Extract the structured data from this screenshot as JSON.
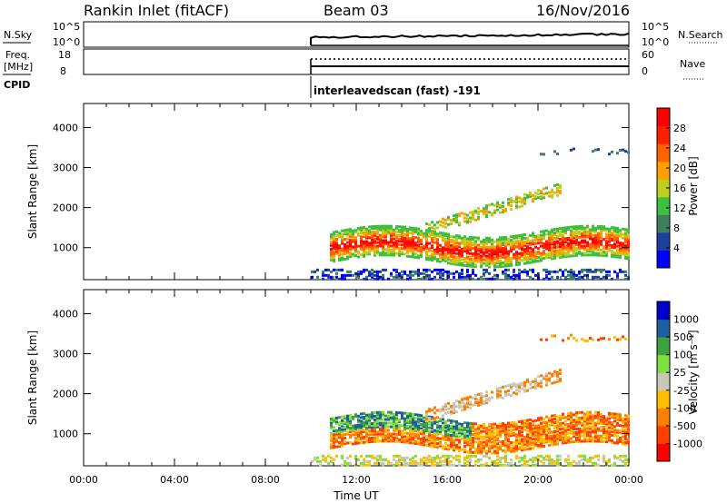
{
  "header": {
    "station": "Rankin Inlet (fitACF)",
    "beam": "Beam 03",
    "date": "16/Nov/2016"
  },
  "panels": {
    "nsky_label": "N.Sky",
    "nsky_ticks": [
      "10^5",
      "10^0"
    ],
    "nsearch_label": "N.Search",
    "nsearch_ticks": [
      "10^5",
      "10^0"
    ],
    "freq_label": "Freq.",
    "freq_unit": "[MHz]",
    "freq_ticks": [
      "18",
      "8"
    ],
    "nave_label": "Nave",
    "nave_ticks": [
      "60",
      "0"
    ],
    "cpid_label": "CPID",
    "cpid_text": "interleavedscan (fast) -191"
  },
  "colors": {
    "power": [
      "#0000ff",
      "#1f3f9f",
      "#3f7f5f",
      "#3fbf3f",
      "#bfcf1f",
      "#ffa000",
      "#ff6000",
      "#ff1f00",
      "#ff0000"
    ],
    "velocity": [
      "#ff0000",
      "#ff4000",
      "#ff7f00",
      "#ffbf00",
      "#c8c8b4",
      "#7fdf3f",
      "#3fa03f",
      "#1f5fa0",
      "#0000c8"
    ]
  },
  "chart_data": [
    {
      "type": "heatmap",
      "panel": "power",
      "ylabel": "Slant Range [km]",
      "xlabel": "",
      "x_ticks": [
        "00:00",
        "04:00",
        "08:00",
        "12:00",
        "16:00",
        "20:00",
        "00:00"
      ],
      "y_ticks": [
        1000,
        2000,
        3000,
        4000
      ],
      "ylim": [
        200,
        4600
      ],
      "xlim_hours": [
        0,
        24
      ],
      "colorbar_label": "Power [dB]",
      "colorbar_ticks": [
        "4",
        "8",
        "12",
        "16",
        "20",
        "24",
        "28"
      ],
      "colorbar_range": [
        0,
        32
      ]
    },
    {
      "type": "heatmap",
      "panel": "velocity",
      "ylabel": "Slant Range [km]",
      "xlabel": "Time UT",
      "x_ticks": [
        "00:00",
        "04:00",
        "08:00",
        "12:00",
        "16:00",
        "20:00",
        "00:00"
      ],
      "y_ticks": [
        1000,
        2000,
        3000,
        4000
      ],
      "ylim": [
        200,
        4600
      ],
      "xlim_hours": [
        0,
        24
      ],
      "colorbar_label": "Velocity [m s⁻¹]",
      "colorbar_ticks": [
        "1000",
        "500",
        "100",
        "25",
        "-25",
        "-100",
        "-500",
        "-1000"
      ]
    }
  ]
}
